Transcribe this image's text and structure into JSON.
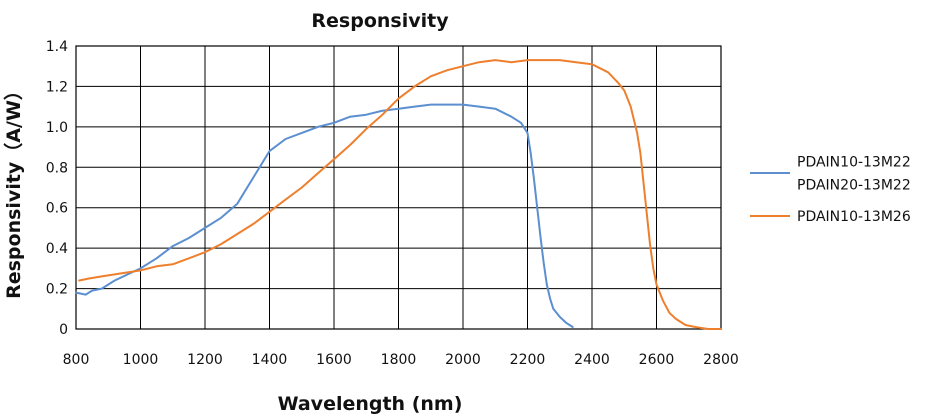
{
  "chart_data": {
    "type": "line",
    "title": "Responsivity",
    "xlabel": "Wavelength (nm)",
    "ylabel": "Responsivity（A/W）",
    "xlim": [
      800,
      2800
    ],
    "ylim": [
      0,
      1.4
    ],
    "x_ticks": [
      "800",
      "1000",
      "1200",
      "1400",
      "1600",
      "1800",
      "2000",
      "2200",
      "2400",
      "2600",
      "2800"
    ],
    "y_ticks": [
      "0",
      "0.2",
      "0.4",
      "0.6",
      "0.8",
      "1.0",
      "1.2",
      "1.4"
    ],
    "grid": true,
    "legend_position": "right",
    "series": [
      {
        "name": "PDAIN10-13M22\nPDAIN20-13M22",
        "legend_lines": [
          "PDAIN10-13M22",
          "PDAIN20-13M22"
        ],
        "color": "#5b8fd0",
        "points": [
          [
            800,
            0.18
          ],
          [
            830,
            0.17
          ],
          [
            850,
            0.19
          ],
          [
            880,
            0.2
          ],
          [
            920,
            0.24
          ],
          [
            960,
            0.27
          ],
          [
            1000,
            0.3
          ],
          [
            1050,
            0.35
          ],
          [
            1100,
            0.41
          ],
          [
            1150,
            0.45
          ],
          [
            1200,
            0.5
          ],
          [
            1250,
            0.55
          ],
          [
            1300,
            0.62
          ],
          [
            1350,
            0.75
          ],
          [
            1400,
            0.88
          ],
          [
            1450,
            0.94
          ],
          [
            1500,
            0.97
          ],
          [
            1550,
            1.0
          ],
          [
            1600,
            1.02
          ],
          [
            1650,
            1.05
          ],
          [
            1700,
            1.06
          ],
          [
            1750,
            1.08
          ],
          [
            1800,
            1.09
          ],
          [
            1850,
            1.1
          ],
          [
            1900,
            1.11
          ],
          [
            1950,
            1.11
          ],
          [
            2000,
            1.11
          ],
          [
            2050,
            1.1
          ],
          [
            2100,
            1.09
          ],
          [
            2150,
            1.05
          ],
          [
            2180,
            1.02
          ],
          [
            2200,
            0.97
          ],
          [
            2210,
            0.87
          ],
          [
            2220,
            0.74
          ],
          [
            2230,
            0.6
          ],
          [
            2240,
            0.46
          ],
          [
            2250,
            0.33
          ],
          [
            2260,
            0.22
          ],
          [
            2270,
            0.15
          ],
          [
            2280,
            0.1
          ],
          [
            2300,
            0.06
          ],
          [
            2320,
            0.03
          ],
          [
            2340,
            0.01
          ]
        ]
      },
      {
        "name": "PDAIN10-13M26",
        "legend_lines": [
          "PDAIN10-13M26"
        ],
        "color": "#ee7f2d",
        "points": [
          [
            810,
            0.24
          ],
          [
            840,
            0.25
          ],
          [
            880,
            0.26
          ],
          [
            920,
            0.27
          ],
          [
            960,
            0.28
          ],
          [
            1000,
            0.29
          ],
          [
            1050,
            0.31
          ],
          [
            1100,
            0.32
          ],
          [
            1150,
            0.35
          ],
          [
            1200,
            0.38
          ],
          [
            1250,
            0.42
          ],
          [
            1300,
            0.47
          ],
          [
            1350,
            0.52
          ],
          [
            1400,
            0.58
          ],
          [
            1450,
            0.64
          ],
          [
            1500,
            0.7
          ],
          [
            1550,
            0.77
          ],
          [
            1600,
            0.84
          ],
          [
            1650,
            0.91
          ],
          [
            1700,
            0.99
          ],
          [
            1750,
            1.06
          ],
          [
            1800,
            1.14
          ],
          [
            1850,
            1.2
          ],
          [
            1900,
            1.25
          ],
          [
            1950,
            1.28
          ],
          [
            2000,
            1.3
          ],
          [
            2050,
            1.32
          ],
          [
            2100,
            1.33
          ],
          [
            2150,
            1.32
          ],
          [
            2200,
            1.33
          ],
          [
            2250,
            1.33
          ],
          [
            2300,
            1.33
          ],
          [
            2350,
            1.32
          ],
          [
            2400,
            1.31
          ],
          [
            2450,
            1.27
          ],
          [
            2480,
            1.22
          ],
          [
            2500,
            1.18
          ],
          [
            2520,
            1.1
          ],
          [
            2540,
            0.97
          ],
          [
            2550,
            0.87
          ],
          [
            2560,
            0.72
          ],
          [
            2570,
            0.57
          ],
          [
            2580,
            0.42
          ],
          [
            2590,
            0.3
          ],
          [
            2600,
            0.22
          ],
          [
            2620,
            0.14
          ],
          [
            2640,
            0.08
          ],
          [
            2660,
            0.05
          ],
          [
            2690,
            0.02
          ],
          [
            2720,
            0.01
          ],
          [
            2760,
            0.0
          ],
          [
            2800,
            0.0
          ]
        ]
      }
    ]
  }
}
